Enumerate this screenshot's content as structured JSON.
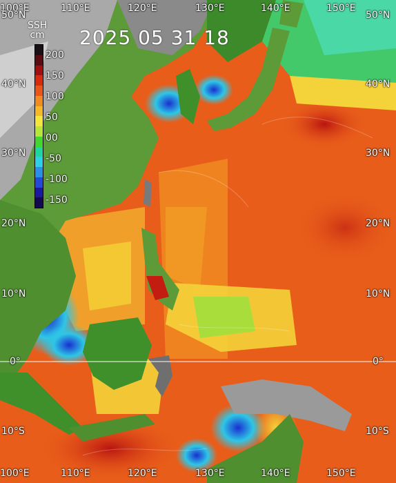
{
  "map": {
    "date_stamp": "2025 05 31 18",
    "colorbar": {
      "variable": "SSH",
      "unit": "cm",
      "labels": [
        "200",
        "150",
        "100",
        "50",
        "00",
        "-50",
        "-100",
        "-150"
      ],
      "colors": [
        "#1a0f14",
        "#5a0c10",
        "#a01010",
        "#d92a10",
        "#e8561a",
        "#f28a22",
        "#f7b827",
        "#f4e63a",
        "#b8e53a",
        "#43d62f",
        "#1fd6a0",
        "#2ed0e6",
        "#2a8fe6",
        "#2448d8",
        "#1a1a9e",
        "#120b54"
      ]
    },
    "axes": {
      "top_lon": [
        "100°E",
        "110°E",
        "120°E",
        "130°E",
        "140°E",
        "150°E"
      ],
      "bottom_lon": [
        "100°E",
        "110°E",
        "120°E",
        "130°E",
        "140°E",
        "150°E"
      ],
      "left_lat": [
        "50°N",
        "40°N",
        "30°N",
        "20°N",
        "10°N",
        "0°",
        "10°S"
      ],
      "right_lat": [
        "50°N",
        "40°N",
        "30°N",
        "20°N",
        "10°N",
        "0°",
        "10°S"
      ]
    },
    "palette": {
      "land": "#5d8f3a",
      "land_dark": "#2f6b1e",
      "mountain": "#b9b9b9",
      "ocean_high": "#e04a16",
      "equator_line": "#ffffff"
    }
  }
}
